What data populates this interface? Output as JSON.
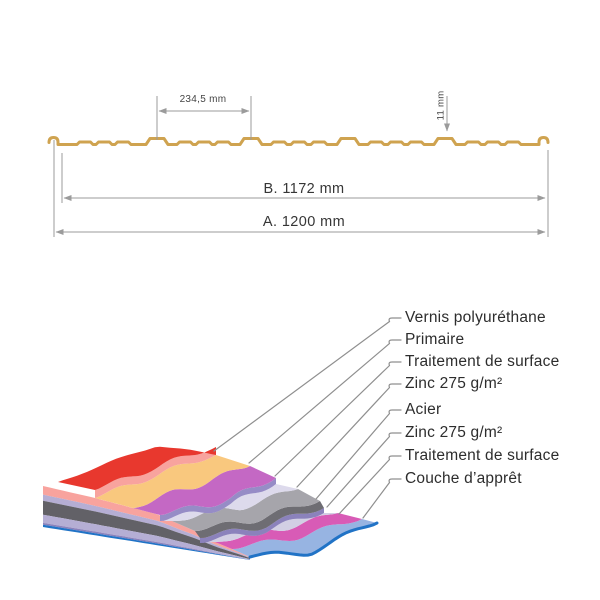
{
  "profile_diagram": {
    "dim_rib_spacing": "234,5 mm",
    "dim_rib_height": "11 mm",
    "dim_useful_width": "B. 1172 mm",
    "dim_total_width": "A. 1200 mm",
    "sheet_color": "#CFA350",
    "dim_line_color": "#9B9B9B",
    "dim_text_color": "#454545"
  },
  "layers_diagram": {
    "labels": [
      {
        "label": "Vernis polyuréthane",
        "color": "#E8382E"
      },
      {
        "label": "Primaire",
        "color": "#F9C87E"
      },
      {
        "label": "Traitement de surface",
        "color": "#C468C4"
      },
      {
        "label": "Zinc 275 g/m²",
        "color": "#DDDAEC"
      },
      {
        "label": "Acier",
        "color": "#A6A5AB"
      },
      {
        "label": "Zinc 275 g/m²",
        "color": "#D2CFE4"
      },
      {
        "label": "Traitement de surface",
        "color": "#D85BB6"
      },
      {
        "label": "Couche d’apprêt",
        "color": "#97B4E2"
      }
    ],
    "accent_colors": {
      "vernis_edge_salmon": "#F8A39E",
      "zinc_stripe": "#968CC6",
      "zinc2_stripe": "#8B82BC",
      "steel_front": "#6E6D73",
      "steel_face_stripe": "#626167",
      "lavender_face_stripe": "#B5AED4",
      "primer_blue_edge": "#2173C6"
    },
    "leader_line_color": "#8F8F8F",
    "label_text_color": "#2D2D2D"
  }
}
